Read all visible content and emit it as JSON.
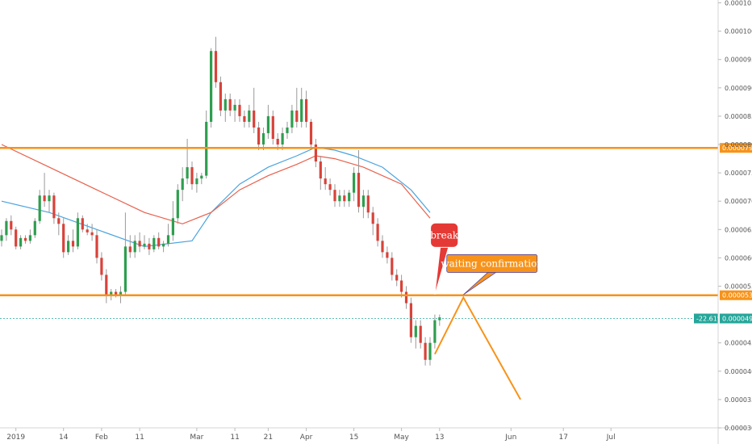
{
  "chart_data": {
    "type": "candlestick",
    "title": "",
    "xlabel": "",
    "ylabel": "",
    "ylim": [
      3e-05,
      0.0001055
    ],
    "y_ticks": [
      "0.0001050",
      "0.0001000",
      "0.0000950",
      "0.0000900",
      "0.0000850",
      "0.0000800",
      "0.0000750",
      "0.0000700",
      "0.0000650",
      "0.0000600",
      "0.0000550",
      "0.0000450",
      "0.0000400",
      "0.0000350",
      "0.0000300"
    ],
    "x_ticks": [
      {
        "label": "2019",
        "bar": 3
      },
      {
        "label": "14",
        "bar": 13
      },
      {
        "label": "Feb",
        "bar": 21
      },
      {
        "label": "11",
        "bar": 29
      },
      {
        "label": "Mar",
        "bar": 41
      },
      {
        "label": "11",
        "bar": 49
      },
      {
        "label": "21",
        "bar": 56
      },
      {
        "label": "Apr",
        "bar": 64
      },
      {
        "label": "15",
        "bar": 74
      },
      {
        "label": "May",
        "bar": 84
      },
      {
        "label": "13",
        "bar": 92
      },
      {
        "label": "Jun",
        "bar": 107
      },
      {
        "label": "17",
        "bar": 118
      },
      {
        "label": "Jul",
        "bar": 128
      }
    ],
    "candles": [
      [
        6.3e-05,
        6.5e-05,
        6.2e-05,
        6.4e-05
      ],
      [
        6.4e-05,
        6.7e-05,
        6.3e-05,
        6.65e-05
      ],
      [
        6.65e-05,
        6.75e-05,
        6.4e-05,
        6.5e-05
      ],
      [
        6.5e-05,
        6.55e-05,
        6.15e-05,
        6.2e-05
      ],
      [
        6.2e-05,
        6.4e-05,
        6.15e-05,
        6.35e-05
      ],
      [
        6.35e-05,
        6.4e-05,
        6.25e-05,
        6.3e-05
      ],
      [
        6.3e-05,
        6.5e-05,
        6.25e-05,
        6.4e-05
      ],
      [
        6.4e-05,
        6.7e-05,
        6.35e-05,
        6.65e-05
      ],
      [
        6.65e-05,
        7.2e-05,
        6.6e-05,
        7.1e-05
      ],
      [
        7.1e-05,
        7.5e-05,
        6.9e-05,
        7e-05
      ],
      [
        7e-05,
        7.2e-05,
        6.8e-05,
        7.1e-05
      ],
      [
        7.1e-05,
        7.15e-05,
        6.6e-05,
        6.7e-05
      ],
      [
        6.7e-05,
        6.8e-05,
        6.4e-05,
        6.6e-05
      ],
      [
        6.6e-05,
        6.7e-05,
        6e-05,
        6.1e-05
      ],
      [
        6.1e-05,
        6.4e-05,
        6.05e-05,
        6.3e-05
      ],
      [
        6.3e-05,
        6.5e-05,
        6.1e-05,
        6.2e-05
      ],
      [
        6.2e-05,
        6.8e-05,
        6.15e-05,
        6.7e-05
      ],
      [
        6.7e-05,
        6.75e-05,
        6.45e-05,
        6.5e-05
      ],
      [
        6.5e-05,
        6.6e-05,
        6.4e-05,
        6.45e-05
      ],
      [
        6.45e-05,
        6.6e-05,
        6.3e-05,
        6.4e-05
      ],
      [
        6.4e-05,
        6.5e-05,
        5.9e-05,
        6e-05
      ],
      [
        6e-05,
        6.1e-05,
        5.6e-05,
        5.7e-05
      ],
      [
        5.7e-05,
        5.8e-05,
        5.2e-05,
        5.35e-05
      ],
      [
        5.35e-05,
        5.45e-05,
        5.25e-05,
        5.4e-05
      ],
      [
        5.4e-05,
        5.45e-05,
        5.3e-05,
        5.35e-05
      ],
      [
        5.35e-05,
        5.5e-05,
        5.2e-05,
        5.4e-05
      ],
      [
        5.4e-05,
        6.8e-05,
        5.35e-05,
        6.2e-05
      ],
      [
        6.2e-05,
        6.4e-05,
        6e-05,
        6.1e-05
      ],
      [
        6.1e-05,
        6.4e-05,
        6e-05,
        6.3e-05
      ],
      [
        6.3e-05,
        6.45e-05,
        6.1e-05,
        6.2e-05
      ],
      [
        6.2e-05,
        6.4e-05,
        6.15e-05,
        6.25e-05
      ],
      [
        6.25e-05,
        6.35e-05,
        6.05e-05,
        6.15e-05
      ],
      [
        6.15e-05,
        6.4e-05,
        6.1e-05,
        6.35e-05
      ],
      [
        6.35e-05,
        6.45e-05,
        6.15e-05,
        6.2e-05
      ],
      [
        6.2e-05,
        6.3e-05,
        6.1e-05,
        6.25e-05
      ],
      [
        6.25e-05,
        6.6e-05,
        6.2e-05,
        6.4e-05
      ],
      [
        6.4e-05,
        7e-05,
        6.3e-05,
        6.7e-05
      ],
      [
        6.7e-05,
        7.3e-05,
        6.6e-05,
        7.2e-05
      ],
      [
        7.2e-05,
        7.6e-05,
        7e-05,
        7.4e-05
      ],
      [
        7.4e-05,
        8.1e-05,
        7.3e-05,
        7.6e-05
      ],
      [
        7.6e-05,
        7.7e-05,
        7.2e-05,
        7.3e-05
      ],
      [
        7.3e-05,
        7.5e-05,
        7.15e-05,
        7.4e-05
      ],
      [
        7.4e-05,
        7.5e-05,
        7.3e-05,
        7.45e-05
      ],
      [
        7.45e-05,
        8.6e-05,
        7.4e-05,
        8.4e-05
      ],
      [
        8.4e-05,
        9.7e-05,
        8.3e-05,
        9.65e-05
      ],
      [
        9.65e-05,
        9.9e-05,
        9e-05,
        9.1e-05
      ],
      [
        9.1e-05,
        9.2e-05,
        8.5e-05,
        8.6e-05
      ],
      [
        8.6e-05,
        8.9e-05,
        8.4e-05,
        8.8e-05
      ],
      [
        8.8e-05,
        8.9e-05,
        8.5e-05,
        8.6e-05
      ],
      [
        8.6e-05,
        8.8e-05,
        8.4e-05,
        8.7e-05
      ],
      [
        8.7e-05,
        8.8e-05,
        8.4e-05,
        8.5e-05
      ],
      [
        8.5e-05,
        8.6e-05,
        8.3e-05,
        8.4e-05
      ],
      [
        8.4e-05,
        8.7e-05,
        8.3e-05,
        8.6e-05
      ],
      [
        8.6e-05,
        9e-05,
        8.2e-05,
        8.3e-05
      ],
      [
        8.3e-05,
        8.4e-05,
        7.9e-05,
        8e-05
      ],
      [
        8e-05,
        8.3e-05,
        7.9e-05,
        8.2e-05
      ],
      [
        8.2e-05,
        8.7e-05,
        8.1e-05,
        8.5e-05
      ],
      [
        8.5e-05,
        8.6e-05,
        8e-05,
        8.1e-05
      ],
      [
        8.1e-05,
        8.2e-05,
        7.9e-05,
        8e-05
      ],
      [
        8e-05,
        8.3e-05,
        7.9e-05,
        8.2e-05
      ],
      [
        8.2e-05,
        8.4e-05,
        8.1e-05,
        8.3e-05
      ],
      [
        8.3e-05,
        8.7e-05,
        8.2e-05,
        8.6e-05
      ],
      [
        8.6e-05,
        9e-05,
        8.3e-05,
        8.4e-05
      ],
      [
        8.4e-05,
        9e-05,
        8.3e-05,
        8.8e-05
      ],
      [
        8.8e-05,
        8.95e-05,
        8.3e-05,
        8.4e-05
      ],
      [
        8.4e-05,
        8.45e-05,
        7.9e-05,
        8e-05
      ],
      [
        8e-05,
        8.1e-05,
        7.6e-05,
        7.7e-05
      ],
      [
        7.7e-05,
        7.8e-05,
        7.2e-05,
        7.4e-05
      ],
      [
        7.4e-05,
        7.6e-05,
        7.2e-05,
        7.3e-05
      ],
      [
        7.3e-05,
        7.4e-05,
        7.1e-05,
        7.2e-05
      ],
      [
        7.2e-05,
        7.3e-05,
        6.9e-05,
        7e-05
      ],
      [
        7e-05,
        7.2e-05,
        6.9e-05,
        7.1e-05
      ],
      [
        7.1e-05,
        7.2e-05,
        6.9e-05,
        7e-05
      ],
      [
        7e-05,
        7.2e-05,
        6.9e-05,
        7.15e-05
      ],
      [
        7.15e-05,
        7.6e-05,
        7e-05,
        7.5e-05
      ],
      [
        7.5e-05,
        7.9e-05,
        6.8e-05,
        6.9e-05
      ],
      [
        6.9e-05,
        7.2e-05,
        6.7e-05,
        7.1e-05
      ],
      [
        7.1e-05,
        7.2e-05,
        6.7e-05,
        6.8e-05
      ],
      [
        6.8e-05,
        6.9e-05,
        6.4e-05,
        6.6e-05
      ],
      [
        6.6e-05,
        6.7e-05,
        6.2e-05,
        6.3e-05
      ],
      [
        6.3e-05,
        6.4e-05,
        6e-05,
        6.1e-05
      ],
      [
        6.1e-05,
        6.2e-05,
        5.9e-05,
        6e-05
      ],
      [
        6e-05,
        6.1e-05,
        5.6e-05,
        5.7e-05
      ],
      [
        5.7e-05,
        5.8e-05,
        5.5e-05,
        5.6e-05
      ],
      [
        5.6e-05,
        5.7e-05,
        5.3e-05,
        5.4e-05
      ],
      [
        5.4e-05,
        5.5e-05,
        5.1e-05,
        5.2e-05
      ],
      [
        5.2e-05,
        5.3e-05,
        4.5e-05,
        4.6e-05
      ],
      [
        4.6e-05,
        4.9e-05,
        4.4e-05,
        4.8e-05
      ],
      [
        4.8e-05,
        4.9e-05,
        4.4e-05,
        4.5e-05
      ],
      [
        4.5e-05,
        4.6e-05,
        4.1e-05,
        4.2e-05
      ],
      [
        4.2e-05,
        4.6e-05,
        4.1e-05,
        4.5e-05
      ],
      [
        4.5e-05,
        5e-05,
        4.4e-05,
        4.9e-05
      ],
      [
        4.9e-05,
        5e-05,
        4.8e-05,
        4.95e-05
      ]
    ],
    "moving_averages": [
      {
        "color": "#4aa3df",
        "points": [
          [
            0,
            7e-05
          ],
          [
            10,
            6.8e-05
          ],
          [
            20,
            6.5e-05
          ],
          [
            30,
            6.2e-05
          ],
          [
            40,
            6.3e-05
          ],
          [
            44,
            6.8e-05
          ],
          [
            50,
            7.3e-05
          ],
          [
            56,
            7.6e-05
          ],
          [
            62,
            7.8e-05
          ],
          [
            66,
            7.95e-05
          ],
          [
            70,
            7.9e-05
          ],
          [
            74,
            7.8e-05
          ],
          [
            80,
            7.6e-05
          ],
          [
            86,
            7.2e-05
          ],
          [
            90,
            6.8e-05
          ]
        ]
      },
      {
        "color": "#e8604c",
        "points": [
          [
            0,
            8e-05
          ],
          [
            10,
            7.6e-05
          ],
          [
            20,
            7.2e-05
          ],
          [
            30,
            6.8e-05
          ],
          [
            38,
            6.6e-05
          ],
          [
            44,
            6.8e-05
          ],
          [
            50,
            7.2e-05
          ],
          [
            56,
            7.45e-05
          ],
          [
            62,
            7.65e-05
          ],
          [
            66,
            7.8e-05
          ],
          [
            70,
            7.75e-05
          ],
          [
            76,
            7.6e-05
          ],
          [
            84,
            7.3e-05
          ],
          [
            90,
            6.7e-05
          ]
        ]
      }
    ],
    "horizontal_lines": [
      {
        "value": 7.94e-05,
        "label": "0.0000794",
        "color": "#f7931a"
      },
      {
        "value": 5.34e-05,
        "label": "0.0000534",
        "color": "#f7931a"
      }
    ],
    "current_price": {
      "value": 4.93e-05,
      "label": "0.0000493",
      "change_label": "-22.61%",
      "color": "#26a69a"
    },
    "projection_path": [
      [
        91,
        4.3e-05
      ],
      [
        97,
        5.3e-05
      ],
      [
        109,
        3.5e-05
      ]
    ],
    "annotations": [
      {
        "text": "break",
        "bar": 93,
        "value": 6.4e-05,
        "anchor_bar": 91,
        "anchor_value": 5.35e-05,
        "bg": "#e53935"
      },
      {
        "text": "waiting confirmation",
        "bar": 103,
        "value": 5.9e-05,
        "anchor_bar": 97,
        "anchor_value": 5.35e-05,
        "bg": "#f7931a"
      }
    ]
  }
}
